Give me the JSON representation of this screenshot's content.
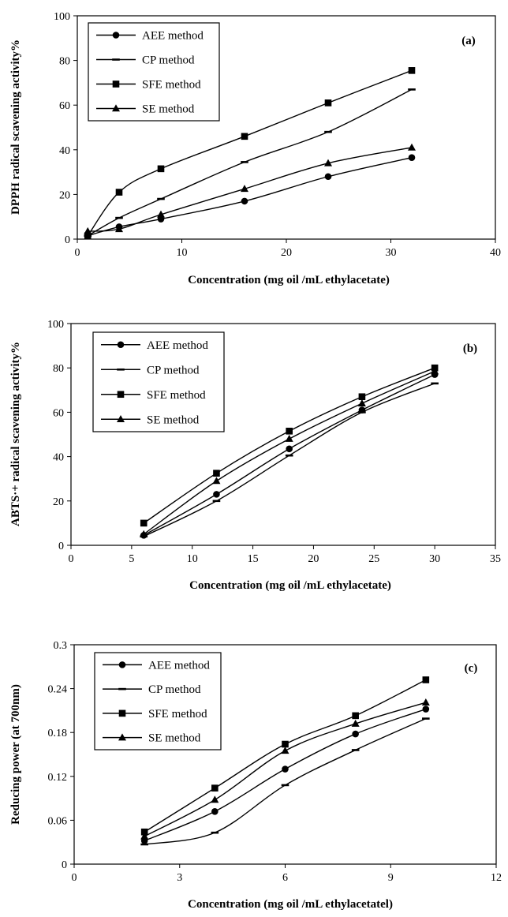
{
  "chart_data": [
    {
      "type": "line",
      "panel_label": "(a)",
      "xlabel": "Concentration  (mg oil /mL ethylacetate)",
      "ylabel": "DPPH radical scavening activity%",
      "xlim": [
        0,
        40
      ],
      "ylim": [
        0,
        100
      ],
      "x_ticks": [
        "0",
        "10",
        "20",
        "30",
        "40"
      ],
      "y_ticks": [
        "0",
        "20",
        "40",
        "60",
        "80",
        "100"
      ],
      "grid": false,
      "legend_position": "top-left",
      "x": [
        1,
        4,
        8,
        16,
        24,
        32
      ],
      "series": [
        {
          "name": "AEE method",
          "marker": "circle",
          "values": [
            1.5,
            5.5,
            9,
            17,
            28,
            36.5
          ]
        },
        {
          "name": "CP method",
          "marker": "dash",
          "values": [
            1.5,
            9.5,
            18,
            34.5,
            48,
            67
          ]
        },
        {
          "name": "SFE method",
          "marker": "square",
          "values": [
            1.5,
            21,
            31.5,
            46,
            61,
            75.5
          ]
        },
        {
          "name": "SE method",
          "marker": "triangle",
          "values": [
            3.5,
            4.5,
            11,
            22.5,
            34,
            41
          ]
        }
      ]
    },
    {
      "type": "line",
      "panel_label": "(b)",
      "xlabel": "Concentration  (mg oil /mL ethylacetate)",
      "ylabel": "ABTS·+ radical scavening activity%",
      "xlim": [
        0,
        35
      ],
      "ylim": [
        0,
        100
      ],
      "x_ticks": [
        "0",
        "5",
        "10",
        "15",
        "20",
        "25",
        "30",
        "35"
      ],
      "y_ticks": [
        "0",
        "20",
        "40",
        "60",
        "80",
        "100"
      ],
      "grid": false,
      "legend_position": "top-left",
      "x": [
        6,
        12,
        18,
        24,
        30
      ],
      "series": [
        {
          "name": "AEE method",
          "marker": "circle",
          "values": [
            4.5,
            23,
            43.5,
            61,
            77
          ]
        },
        {
          "name": "CP method",
          "marker": "dash",
          "values": [
            4,
            20,
            40.5,
            60,
            73
          ]
        },
        {
          "name": "SFE method",
          "marker": "square",
          "values": [
            10,
            32.5,
            51.5,
            67,
            80
          ]
        },
        {
          "name": "SE method",
          "marker": "triangle",
          "values": [
            5,
            29,
            48,
            64,
            78.5
          ]
        }
      ]
    },
    {
      "type": "line",
      "panel_label": "(c)",
      "xlabel": "Concentration  (mg oil /mL ethylacetatel)",
      "ylabel": "Reducing power  (at 700nm)",
      "xlim": [
        0,
        12
      ],
      "ylim": [
        0,
        0.3
      ],
      "x_ticks": [
        "0",
        "3",
        "6",
        "9",
        "12"
      ],
      "y_ticks": [
        "0",
        "0.06",
        "0.12",
        "0.18",
        "0.24",
        "0.3"
      ],
      "grid": false,
      "legend_position": "top-left",
      "x": [
        2,
        4,
        6,
        8,
        10
      ],
      "series": [
        {
          "name": "AEE method",
          "marker": "circle",
          "values": [
            0.032,
            0.072,
            0.13,
            0.178,
            0.212
          ]
        },
        {
          "name": "CP method",
          "marker": "dash",
          "values": [
            0.027,
            0.043,
            0.108,
            0.156,
            0.199
          ]
        },
        {
          "name": "SFE method",
          "marker": "square",
          "values": [
            0.044,
            0.104,
            0.164,
            0.203,
            0.252
          ]
        },
        {
          "name": "SE method",
          "marker": "triangle",
          "values": [
            0.038,
            0.088,
            0.155,
            0.192,
            0.221
          ]
        }
      ]
    }
  ]
}
